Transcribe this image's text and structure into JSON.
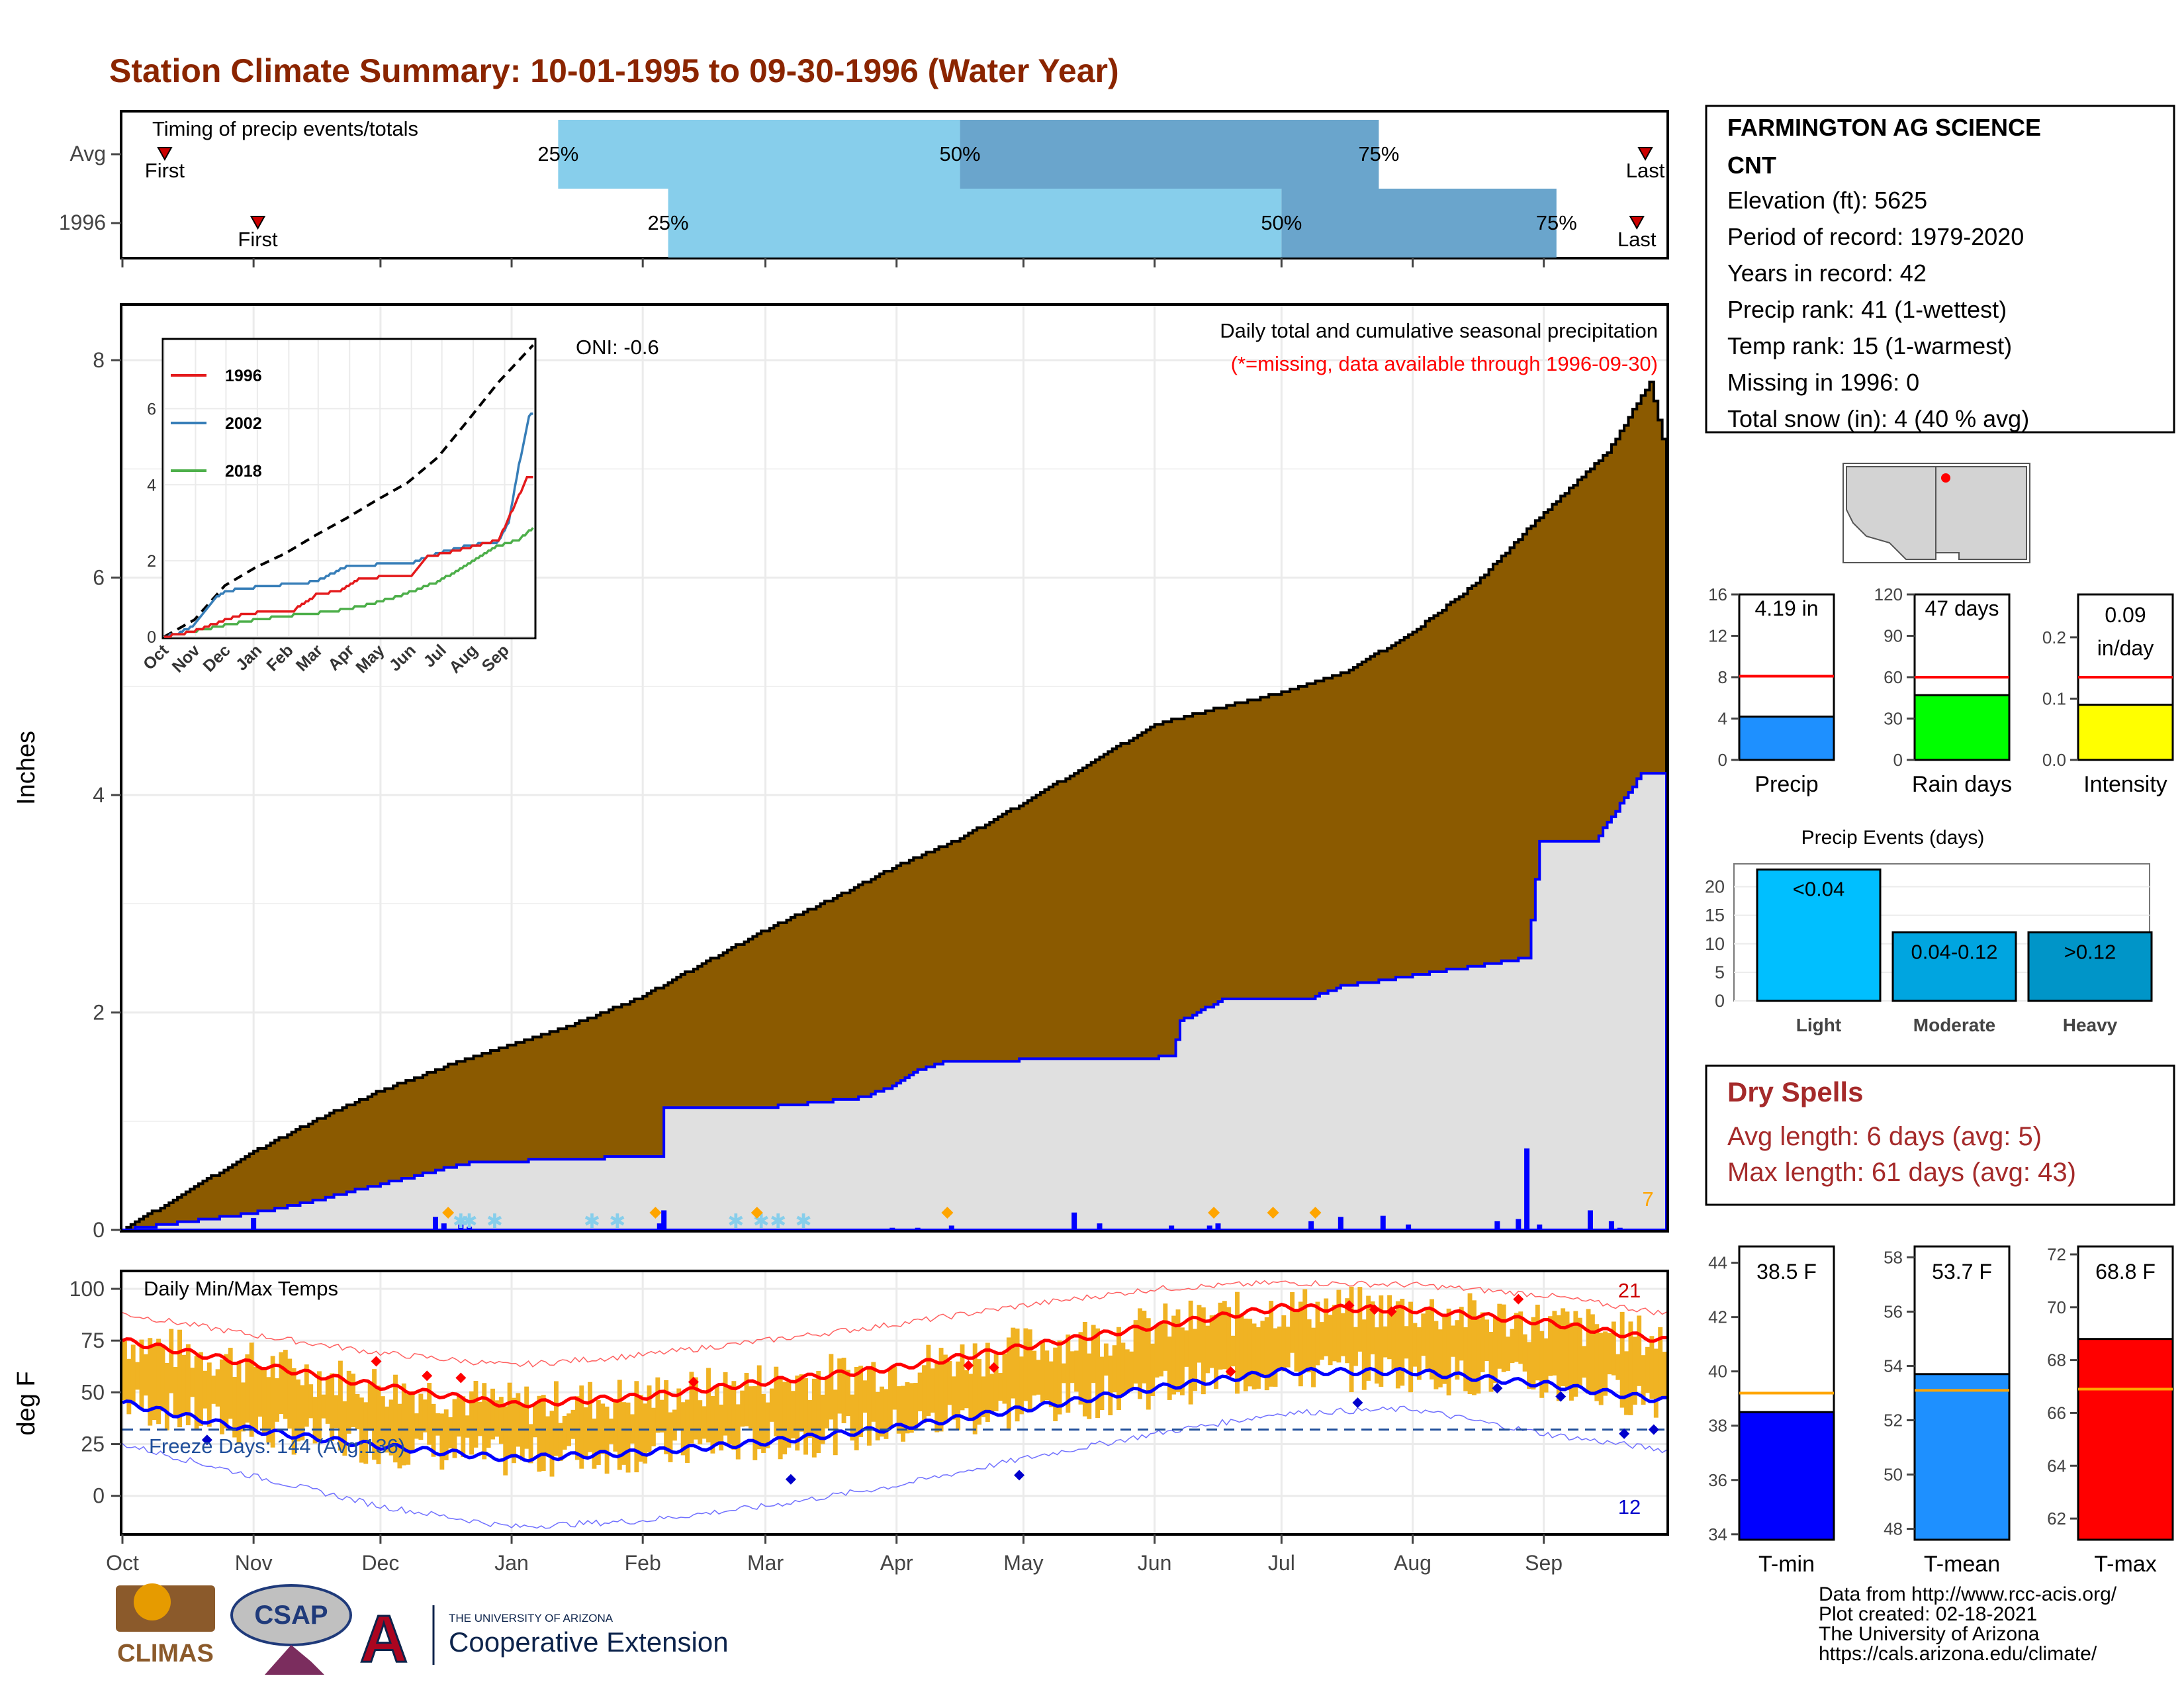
{
  "title": "Station Climate Summary: 10-01-1995 to 09-30-1996 (Water Year)",
  "colors": {
    "title": "#8b2500",
    "brown": "#8b5a00",
    "light_blue": "#87ceeb",
    "mid_blue": "#6aa5cc",
    "blue": "#0000ff",
    "red": "#ff0000",
    "orange": "#ffa500",
    "gold": "#f0b323",
    "grey": "#e0e0e0",
    "dry": "#a52a2a"
  },
  "timing": {
    "label": "Timing of precip events/totals",
    "rows": [
      {
        "name": "Avg",
        "first_label": "First",
        "last_label": "Last",
        "first_day": 10,
        "last_day": 360,
        "p25": 103,
        "p50": 198,
        "p75": 297,
        "p25_label": "25%",
        "p50_label": "50%",
        "p75_label": "75%"
      },
      {
        "name": "1996",
        "first_label": "First",
        "last_label": "Last",
        "first_day": 32,
        "last_day": 358,
        "p25": 129,
        "p50": 274,
        "p75": 339,
        "p25_label": "25%",
        "p50_label": "50%",
        "p75_label": "75%"
      }
    ]
  },
  "precip_panel": {
    "ylabel": "Inches",
    "ymax": 8.5,
    "yticks": [
      "0",
      "2",
      "4",
      "6",
      "8"
    ],
    "note1": "Daily total and cumulative seasonal precipitation",
    "note2": "(*=missing, data available through 1996-09-30)",
    "oni": "ONI: -0.6",
    "count_label": "7",
    "cum_2016": {
      "days": [
        0,
        15,
        31,
        46,
        61,
        76,
        92,
        107,
        122,
        137,
        153,
        168,
        183,
        198,
        214,
        229,
        244,
        259,
        275,
        290,
        305,
        320,
        336,
        351,
        361,
        365
      ],
      "values": [
        0,
        0.35,
        0.72,
        1.02,
        1.28,
        1.5,
        1.7,
        1.9,
        2.13,
        2.45,
        2.78,
        3.05,
        3.35,
        3.6,
        3.95,
        4.3,
        4.65,
        4.8,
        4.95,
        5.15,
        5.5,
        5.95,
        6.6,
        7.15,
        7.8,
        7.1
      ]
    },
    "cum_1996": {
      "days": [
        0,
        30,
        40,
        82,
        127,
        128,
        150,
        158,
        175,
        182,
        187,
        195,
        248,
        250,
        260,
        280,
        288,
        332,
        335,
        348,
        359,
        365
      ],
      "values": [
        0,
        0.15,
        0.22,
        0.62,
        0.68,
        1.12,
        1.12,
        1.15,
        1.22,
        1.32,
        1.45,
        1.55,
        1.59,
        1.92,
        2.12,
        2.12,
        2.24,
        2.5,
        3.58,
        3.58,
        4.2,
        4.2
      ]
    },
    "daily_bars": [
      {
        "day": 31,
        "value": 0.11
      },
      {
        "day": 40,
        "value": 0.01
      },
      {
        "day": 74,
        "value": 0.12
      },
      {
        "day": 76,
        "value": 0.06
      },
      {
        "day": 80,
        "value": 0.05
      },
      {
        "day": 82,
        "value": 0.03
      },
      {
        "day": 127,
        "value": 0.06
      },
      {
        "day": 128,
        "value": 0.18
      },
      {
        "day": 182,
        "value": 0.02
      },
      {
        "day": 188,
        "value": 0.02
      },
      {
        "day": 196,
        "value": 0.04
      },
      {
        "day": 225,
        "value": 0.16
      },
      {
        "day": 231,
        "value": 0.06
      },
      {
        "day": 248,
        "value": 0.04
      },
      {
        "day": 257,
        "value": 0.04
      },
      {
        "day": 259,
        "value": 0.06
      },
      {
        "day": 281,
        "value": 0.08
      },
      {
        "day": 288,
        "value": 0.12
      },
      {
        "day": 298,
        "value": 0.13
      },
      {
        "day": 304,
        "value": 0.05
      },
      {
        "day": 325,
        "value": 0.08
      },
      {
        "day": 330,
        "value": 0.1
      },
      {
        "day": 332,
        "value": 0.75
      },
      {
        "day": 335,
        "value": 0.05
      },
      {
        "day": 347,
        "value": 0.18
      },
      {
        "day": 352,
        "value": 0.08
      },
      {
        "day": 354,
        "value": 0.02
      }
    ],
    "snow_days": [
      80,
      82,
      88,
      111,
      117,
      145,
      151,
      155,
      161
    ],
    "orange_days": [
      77,
      126,
      150,
      195,
      258,
      272,
      282
    ]
  },
  "months": [
    "Oct",
    "Nov",
    "Dec",
    "Jan",
    "Feb",
    "Mar",
    "Apr",
    "May",
    "Jun",
    "Jul",
    "Aug",
    "Sep"
  ],
  "month_days": [
    0,
    31,
    61,
    92,
    123,
    152,
    183,
    213,
    244,
    274,
    305,
    336
  ],
  "inset": {
    "legend": [
      "1996",
      "2002",
      "2018"
    ],
    "legend_colors": [
      "#e41a1c",
      "#377eb8",
      "#4daf4a"
    ],
    "yticks": [
      "0",
      "2",
      "4",
      "6"
    ],
    "ymax": 7.8,
    "months": [
      "Oct",
      "Nov",
      "Dec",
      "Jan",
      "Feb",
      "Mar",
      "Apr",
      "May",
      "Jun",
      "Jul",
      "Aug",
      "Sep"
    ],
    "avg": {
      "days": [
        0,
        30,
        60,
        90,
        120,
        150,
        180,
        210,
        240,
        270,
        300,
        330,
        365
      ],
      "values": [
        0,
        0.45,
        1.35,
        1.82,
        2.2,
        2.68,
        3.12,
        3.6,
        4.05,
        4.72,
        5.7,
        6.7,
        7.7
      ]
    },
    "s1996": {
      "days": [
        0,
        30,
        40,
        80,
        127,
        150,
        175,
        195,
        245,
        260,
        285,
        330,
        348,
        358,
        365
      ],
      "values": [
        0,
        0.15,
        0.25,
        0.62,
        0.68,
        1.1,
        1.22,
        1.55,
        1.6,
        2.1,
        2.24,
        2.55,
        3.58,
        4.2,
        4.2
      ]
    },
    "s2002": {
      "days": [
        0,
        15,
        30,
        50,
        60,
        90,
        120,
        150,
        180,
        210,
        240,
        270,
        300,
        330,
        340,
        350,
        360,
        365
      ],
      "values": [
        0,
        0.1,
        0.3,
        1.0,
        1.2,
        1.3,
        1.38,
        1.45,
        1.85,
        1.9,
        1.9,
        2.2,
        2.4,
        2.5,
        3.0,
        4.5,
        5.8,
        5.9
      ]
    },
    "s2018": {
      "days": [
        0,
        30,
        60,
        90,
        120,
        150,
        180,
        210,
        240,
        270,
        300,
        330,
        350,
        365
      ],
      "values": [
        0,
        0.15,
        0.3,
        0.45,
        0.55,
        0.62,
        0.72,
        0.9,
        1.15,
        1.45,
        1.9,
        2.4,
        2.55,
        2.9
      ]
    }
  },
  "temp_panel": {
    "ylabel": "deg F",
    "label": "Daily Min/Max Temps",
    "freeze_label": "Freeze Days: 144 (Avg:136)",
    "max_count": "21",
    "min_count": "12",
    "yticks": [
      "0",
      "25",
      "50",
      "75",
      "100"
    ],
    "ymin": -18,
    "ymax": 108,
    "avg_max": {
      "days": [
        0,
        30,
        61,
        92,
        123,
        152,
        183,
        213,
        244,
        274,
        305,
        336,
        365
      ],
      "values": [
        75,
        64,
        53,
        44,
        48,
        55,
        62,
        72,
        82,
        91,
        90,
        84,
        75
      ]
    },
    "avg_min": {
      "days": [
        0,
        30,
        61,
        92,
        123,
        152,
        183,
        213,
        244,
        274,
        305,
        336,
        365
      ],
      "values": [
        45,
        32,
        24,
        18,
        21,
        26,
        33,
        42,
        52,
        60,
        60,
        54,
        46
      ]
    },
    "rec_max": {
      "days": [
        0,
        30,
        61,
        92,
        123,
        152,
        183,
        213,
        244,
        274,
        305,
        336,
        365
      ],
      "values": [
        88,
        78,
        69,
        63,
        68,
        75,
        83,
        92,
        100,
        103,
        102,
        97,
        88
      ]
    },
    "rec_min": {
      "days": [
        0,
        30,
        61,
        92,
        123,
        152,
        183,
        213,
        244,
        274,
        305,
        336,
        365
      ],
      "values": [
        25,
        10,
        -5,
        -15,
        -12,
        -5,
        5,
        18,
        30,
        40,
        42,
        30,
        22
      ]
    },
    "freeze_line": 32
  },
  "station": {
    "name": "FARMINGTON AG SCIENCE",
    "name2": "CNT",
    "elevation": "Elevation (ft): 5625",
    "period": "Period of record: 1979-2020",
    "years": "Years in record: 42",
    "precip_rank": "Precip rank: 41 (1-wettest)",
    "temp_rank": "Temp rank: 15 (1-warmest)",
    "missing": "Missing in 1996: 0",
    "snow": "Total snow (in): 4 (40 % avg)"
  },
  "mini_bars": [
    {
      "label": "Precip",
      "value_label": "4.19 in",
      "value": 4.19,
      "avg": 8.1,
      "ymax": 16,
      "yticks": [
        "0",
        "4",
        "8",
        "12",
        "16"
      ],
      "ytick_vals": [
        0,
        4,
        8,
        12,
        16
      ],
      "color": "#1e90ff"
    },
    {
      "label": "Rain days",
      "value_label": "47 days",
      "value": 47,
      "avg": 60,
      "ymax": 120,
      "yticks": [
        "0",
        "30",
        "60",
        "90",
        "120"
      ],
      "ytick_vals": [
        0,
        30,
        60,
        90,
        120
      ],
      "color": "#00ff00"
    },
    {
      "label": "Intensity",
      "value_label": "0.09",
      "value_label2": "in/day",
      "value": 0.09,
      "avg": 0.135,
      "ymax": 0.27,
      "yticks": [
        "0.0",
        "0.1",
        "0.2"
      ],
      "ytick_vals": [
        0,
        0.1,
        0.2
      ],
      "color": "#ffff00"
    }
  ],
  "events": {
    "title": "Precip Events (days)",
    "yticks": [
      "0",
      "5",
      "10",
      "15",
      "20"
    ],
    "ymax": 24,
    "bars": [
      {
        "cat": "Light",
        "label": "<0.04",
        "value": 23,
        "color": "#00bfff"
      },
      {
        "cat": "Moderate",
        "label": "0.04-0.12",
        "value": 12,
        "color": "#00a5e0"
      },
      {
        "cat": "Heavy",
        "label": ">0.12",
        "value": 12,
        "color": "#0095c8"
      }
    ]
  },
  "dry": {
    "title": "Dry Spells",
    "avg": "Avg length: 6 days (avg: 5)",
    "max": "Max length: 61 days (avg: 43)"
  },
  "temp_bars": [
    {
      "label": "T-min",
      "value_label": "38.5 F",
      "value": 38.5,
      "avg": 39.2,
      "ymin": 33.8,
      "ymax": 44.6,
      "yticks": [
        "34",
        "36",
        "38",
        "40",
        "42",
        "44"
      ],
      "ytick_vals": [
        34,
        36,
        38,
        40,
        42,
        44
      ],
      "color": "#0000ff"
    },
    {
      "label": "T-mean",
      "value_label": "53.7 F",
      "value": 53.7,
      "avg": 53.1,
      "ymin": 47.6,
      "ymax": 58.4,
      "yticks": [
        "48",
        "50",
        "52",
        "54",
        "56",
        "58"
      ],
      "ytick_vals": [
        48,
        50,
        52,
        54,
        56,
        58
      ],
      "color": "#1e90ff"
    },
    {
      "label": "T-max",
      "value_label": "68.8 F",
      "value": 68.8,
      "avg": 66.9,
      "ymin": 61.2,
      "ymax": 72.3,
      "yticks": [
        "62",
        "64",
        "66",
        "68",
        "70",
        "72"
      ],
      "ytick_vals": [
        62,
        64,
        66,
        68,
        70,
        72
      ],
      "color": "#ff0000"
    }
  ],
  "footer": {
    "l1": "Data from http://www.rcc-acis.org/",
    "l2": "Plot created: 02-18-2021",
    "l3": "The University of Arizona",
    "l4": "https://cals.arizona.edu/climate/"
  },
  "logos": {
    "climas": "CLIMAS",
    "csap": "CSAP",
    "ua_small": "THE UNIVERSITY OF ARIZONA",
    "ua_big": "Cooperative Extension"
  }
}
